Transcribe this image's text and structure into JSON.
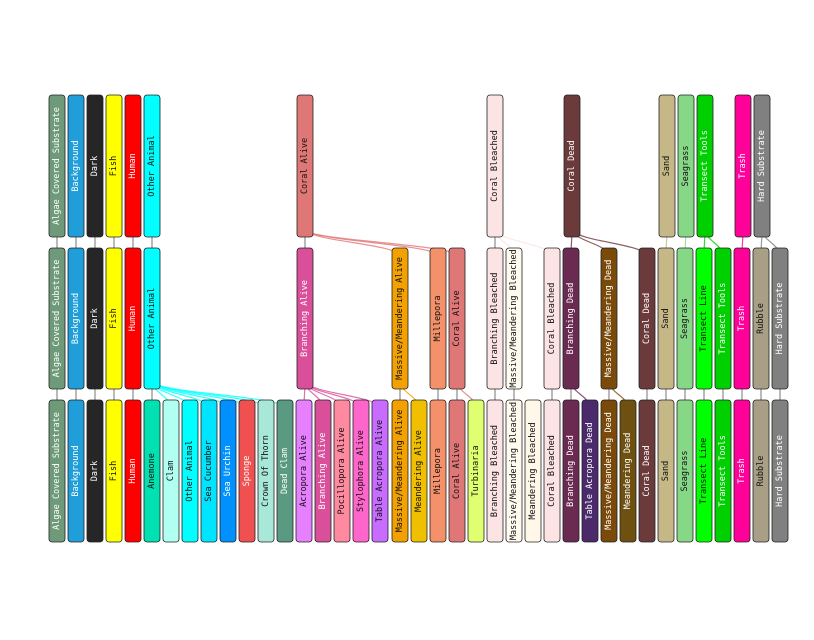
{
  "levels": [
    {
      "name": "top",
      "nodes": [
        {
          "label": "Algae Covered Substrate",
          "color": "#6e9a7a"
        },
        {
          "label": "Background",
          "color": "#1f9ed9"
        },
        {
          "label": "Dark",
          "color": "#262626"
        },
        {
          "label": "Fish",
          "color": "#ffff00"
        },
        {
          "label": "Human",
          "color": "#ff0000"
        },
        {
          "label": "Other Animal",
          "color": "#00ffff"
        },
        {
          "label": "Coral Alive",
          "color": "#e07777"
        },
        {
          "label": "Coral Bleached",
          "color": "#fce4e4"
        },
        {
          "label": "Coral Dead",
          "color": "#6b3a3a"
        },
        {
          "label": "Sand",
          "color": "#c5b886"
        },
        {
          "label": "Seagrass",
          "color": "#86d886"
        },
        {
          "label": "Transect Tools",
          "color": "#00d000"
        },
        {
          "label": "Trash",
          "color": "#ff0099"
        },
        {
          "label": "Hard Substrate",
          "color": "#808080"
        }
      ]
    },
    {
      "name": "middle",
      "nodes": [
        {
          "label": "Algae Covered Substrate",
          "color": "#6e9a7a"
        },
        {
          "label": "Background",
          "color": "#1f9ed9"
        },
        {
          "label": "Dark",
          "color": "#262626"
        },
        {
          "label": "Fish",
          "color": "#ffff00"
        },
        {
          "label": "Human",
          "color": "#ff0000"
        },
        {
          "label": "Other Animal",
          "color": "#00ffff"
        },
        {
          "label": "Branching Alive",
          "color": "#d94f9a"
        },
        {
          "label": "Massive/Meandering Alive",
          "color": "#f2a100"
        },
        {
          "label": "Millepora",
          "color": "#f4906a"
        },
        {
          "label": "Coral Alive",
          "color": "#e07777"
        },
        {
          "label": "Branching Bleached",
          "color": "#fce4e4"
        },
        {
          "label": "Massive/Meandering Bleached",
          "color": "#fffbee"
        },
        {
          "label": "Coral Bleached",
          "color": "#fce4e4"
        },
        {
          "label": "Branching Dead",
          "color": "#6b2a52"
        },
        {
          "label": "Massive/Meandering Dead",
          "color": "#7a4a0a"
        },
        {
          "label": "Coral Dead",
          "color": "#6b3a3a"
        },
        {
          "label": "Sand",
          "color": "#c5b886"
        },
        {
          "label": "Seagrass",
          "color": "#86d886"
        },
        {
          "label": "Transect Line",
          "color": "#00ff00"
        },
        {
          "label": "Transect Tools",
          "color": "#00d000"
        },
        {
          "label": "Trash",
          "color": "#ff0099"
        },
        {
          "label": "Rubble",
          "color": "#a89f86"
        },
        {
          "label": "Hard Substrate",
          "color": "#808080"
        }
      ]
    },
    {
      "name": "bottom",
      "nodes": [
        {
          "label": "Algae Covered Substrate",
          "color": "#6e9a7a"
        },
        {
          "label": "Background",
          "color": "#1f9ed9"
        },
        {
          "label": "Dark",
          "color": "#262626"
        },
        {
          "label": "Fish",
          "color": "#ffff00"
        },
        {
          "label": "Human",
          "color": "#ff0000"
        },
        {
          "label": "Anemone",
          "color": "#00e0b0"
        },
        {
          "label": "Clam",
          "color": "#b0fff0"
        },
        {
          "label": "Other Animal",
          "color": "#00ffff"
        },
        {
          "label": "Sea Cucumber",
          "color": "#00e5ff"
        },
        {
          "label": "Sea Urchin",
          "color": "#0091ff"
        },
        {
          "label": "Sponge",
          "color": "#f05050"
        },
        {
          "label": "Crown Of Thorn",
          "color": "#a8e8d8"
        },
        {
          "label": "Dead Clam",
          "color": "#5a9a82"
        },
        {
          "label": "Acropora Alive",
          "color": "#e680ff"
        },
        {
          "label": "Branching Alive",
          "color": "#d94f9a"
        },
        {
          "label": "Pocillopora Alive",
          "color": "#ff8aa0"
        },
        {
          "label": "Stylophora Alive",
          "color": "#ff66cc"
        },
        {
          "label": "Table Acropora Alive",
          "color": "#c86cff"
        },
        {
          "label": "Massive/Meandering Alive",
          "color": "#f2a100"
        },
        {
          "label": "Meandering Alive",
          "color": "#f0c000"
        },
        {
          "label": "Millepora",
          "color": "#f4906a"
        },
        {
          "label": "Coral Alive",
          "color": "#e07777"
        },
        {
          "label": "Turbinaria",
          "color": "#e0ff70"
        },
        {
          "label": "Branching Bleached",
          "color": "#fce4e4"
        },
        {
          "label": "Massive/Meandering Bleached",
          "color": "#fffbee"
        },
        {
          "label": "Meandering Bleached",
          "color": "#fff8e8"
        },
        {
          "label": "Coral Bleached",
          "color": "#fce4e4"
        },
        {
          "label": "Branching Dead",
          "color": "#6b2a52"
        },
        {
          "label": "Table Acropora Dead",
          "color": "#4a2a6a"
        },
        {
          "label": "Massive/Meandering Dead",
          "color": "#7a4a0a"
        },
        {
          "label": "Meandering Dead",
          "color": "#6e5010"
        },
        {
          "label": "Coral Dead",
          "color": "#6b3a3a"
        },
        {
          "label": "Sand",
          "color": "#c5b886"
        },
        {
          "label": "Seagrass",
          "color": "#86d886"
        },
        {
          "label": "Transect Line",
          "color": "#00ff00"
        },
        {
          "label": "Transect Tools",
          "color": "#00d000"
        },
        {
          "label": "Trash",
          "color": "#ff0099"
        },
        {
          "label": "Rubble",
          "color": "#a89f86"
        },
        {
          "label": "Hard Substrate",
          "color": "#808080"
        }
      ]
    }
  ],
  "links": [
    {
      "from": [
        0,
        0
      ],
      "to": [
        1,
        0
      ]
    },
    {
      "from": [
        0,
        1
      ],
      "to": [
        1,
        1
      ]
    },
    {
      "from": [
        0,
        2
      ],
      "to": [
        1,
        2
      ]
    },
    {
      "from": [
        0,
        3
      ],
      "to": [
        1,
        3
      ]
    },
    {
      "from": [
        0,
        4
      ],
      "to": [
        1,
        4
      ]
    },
    {
      "from": [
        0,
        5
      ],
      "to": [
        1,
        5
      ]
    },
    {
      "from": [
        0,
        6
      ],
      "to": [
        1,
        6
      ]
    },
    {
      "from": [
        0,
        6
      ],
      "to": [
        1,
        7
      ]
    },
    {
      "from": [
        0,
        6
      ],
      "to": [
        1,
        8
      ]
    },
    {
      "from": [
        0,
        6
      ],
      "to": [
        1,
        9
      ]
    },
    {
      "from": [
        0,
        7
      ],
      "to": [
        1,
        10
      ]
    },
    {
      "from": [
        0,
        7
      ],
      "to": [
        1,
        11
      ]
    },
    {
      "from": [
        0,
        7
      ],
      "to": [
        1,
        12
      ]
    },
    {
      "from": [
        0,
        8
      ],
      "to": [
        1,
        13
      ]
    },
    {
      "from": [
        0,
        8
      ],
      "to": [
        1,
        14
      ]
    },
    {
      "from": [
        0,
        8
      ],
      "to": [
        1,
        15
      ]
    },
    {
      "from": [
        0,
        9
      ],
      "to": [
        1,
        16
      ]
    },
    {
      "from": [
        0,
        10
      ],
      "to": [
        1,
        17
      ]
    },
    {
      "from": [
        0,
        11
      ],
      "to": [
        1,
        18
      ]
    },
    {
      "from": [
        0,
        11
      ],
      "to": [
        1,
        19
      ]
    },
    {
      "from": [
        0,
        12
      ],
      "to": [
        1,
        20
      ]
    },
    {
      "from": [
        0,
        13
      ],
      "to": [
        1,
        21
      ]
    },
    {
      "from": [
        0,
        13
      ],
      "to": [
        1,
        22
      ]
    },
    {
      "from": [
        1,
        0
      ],
      "to": [
        2,
        0
      ]
    },
    {
      "from": [
        1,
        1
      ],
      "to": [
        2,
        1
      ]
    },
    {
      "from": [
        1,
        2
      ],
      "to": [
        2,
        2
      ]
    },
    {
      "from": [
        1,
        3
      ],
      "to": [
        2,
        3
      ]
    },
    {
      "from": [
        1,
        4
      ],
      "to": [
        2,
        4
      ]
    },
    {
      "from": [
        1,
        5
      ],
      "to": [
        2,
        5
      ]
    },
    {
      "from": [
        1,
        5
      ],
      "to": [
        2,
        6
      ]
    },
    {
      "from": [
        1,
        5
      ],
      "to": [
        2,
        7
      ]
    },
    {
      "from": [
        1,
        5
      ],
      "to": [
        2,
        8
      ]
    },
    {
      "from": [
        1,
        5
      ],
      "to": [
        2,
        9
      ]
    },
    {
      "from": [
        1,
        5
      ],
      "to": [
        2,
        10
      ]
    },
    {
      "from": [
        1,
        5
      ],
      "to": [
        2,
        11
      ]
    },
    {
      "from": [
        1,
        5
      ],
      "to": [
        2,
        12
      ]
    },
    {
      "from": [
        1,
        6
      ],
      "to": [
        2,
        13
      ]
    },
    {
      "from": [
        1,
        6
      ],
      "to": [
        2,
        14
      ]
    },
    {
      "from": [
        1,
        6
      ],
      "to": [
        2,
        15
      ]
    },
    {
      "from": [
        1,
        6
      ],
      "to": [
        2,
        16
      ]
    },
    {
      "from": [
        1,
        6
      ],
      "to": [
        2,
        17
      ]
    },
    {
      "from": [
        1,
        7
      ],
      "to": [
        2,
        18
      ]
    },
    {
      "from": [
        1,
        7
      ],
      "to": [
        2,
        19
      ]
    },
    {
      "from": [
        1,
        8
      ],
      "to": [
        2,
        20
      ]
    },
    {
      "from": [
        1,
        9
      ],
      "to": [
        2,
        21
      ]
    },
    {
      "from": [
        1,
        9
      ],
      "to": [
        2,
        22
      ]
    },
    {
      "from": [
        1,
        10
      ],
      "to": [
        2,
        23
      ]
    },
    {
      "from": [
        1,
        11
      ],
      "to": [
        2,
        24
      ]
    },
    {
      "from": [
        1,
        11
      ],
      "to": [
        2,
        25
      ]
    },
    {
      "from": [
        1,
        12
      ],
      "to": [
        2,
        26
      ]
    },
    {
      "from": [
        1,
        13
      ],
      "to": [
        2,
        27
      ]
    },
    {
      "from": [
        1,
        13
      ],
      "to": [
        2,
        28
      ]
    },
    {
      "from": [
        1,
        14
      ],
      "to": [
        2,
        29
      ]
    },
    {
      "from": [
        1,
        14
      ],
      "to": [
        2,
        30
      ]
    },
    {
      "from": [
        1,
        15
      ],
      "to": [
        2,
        31
      ]
    },
    {
      "from": [
        1,
        16
      ],
      "to": [
        2,
        32
      ]
    },
    {
      "from": [
        1,
        17
      ],
      "to": [
        2,
        33
      ]
    },
    {
      "from": [
        1,
        18
      ],
      "to": [
        2,
        34
      ]
    },
    {
      "from": [
        1,
        19
      ],
      "to": [
        2,
        35
      ]
    },
    {
      "from": [
        1,
        20
      ],
      "to": [
        2,
        36
      ]
    },
    {
      "from": [
        1,
        21
      ],
      "to": [
        2,
        37
      ]
    },
    {
      "from": [
        1,
        22
      ],
      "to": [
        2,
        38
      ]
    }
  ]
}
